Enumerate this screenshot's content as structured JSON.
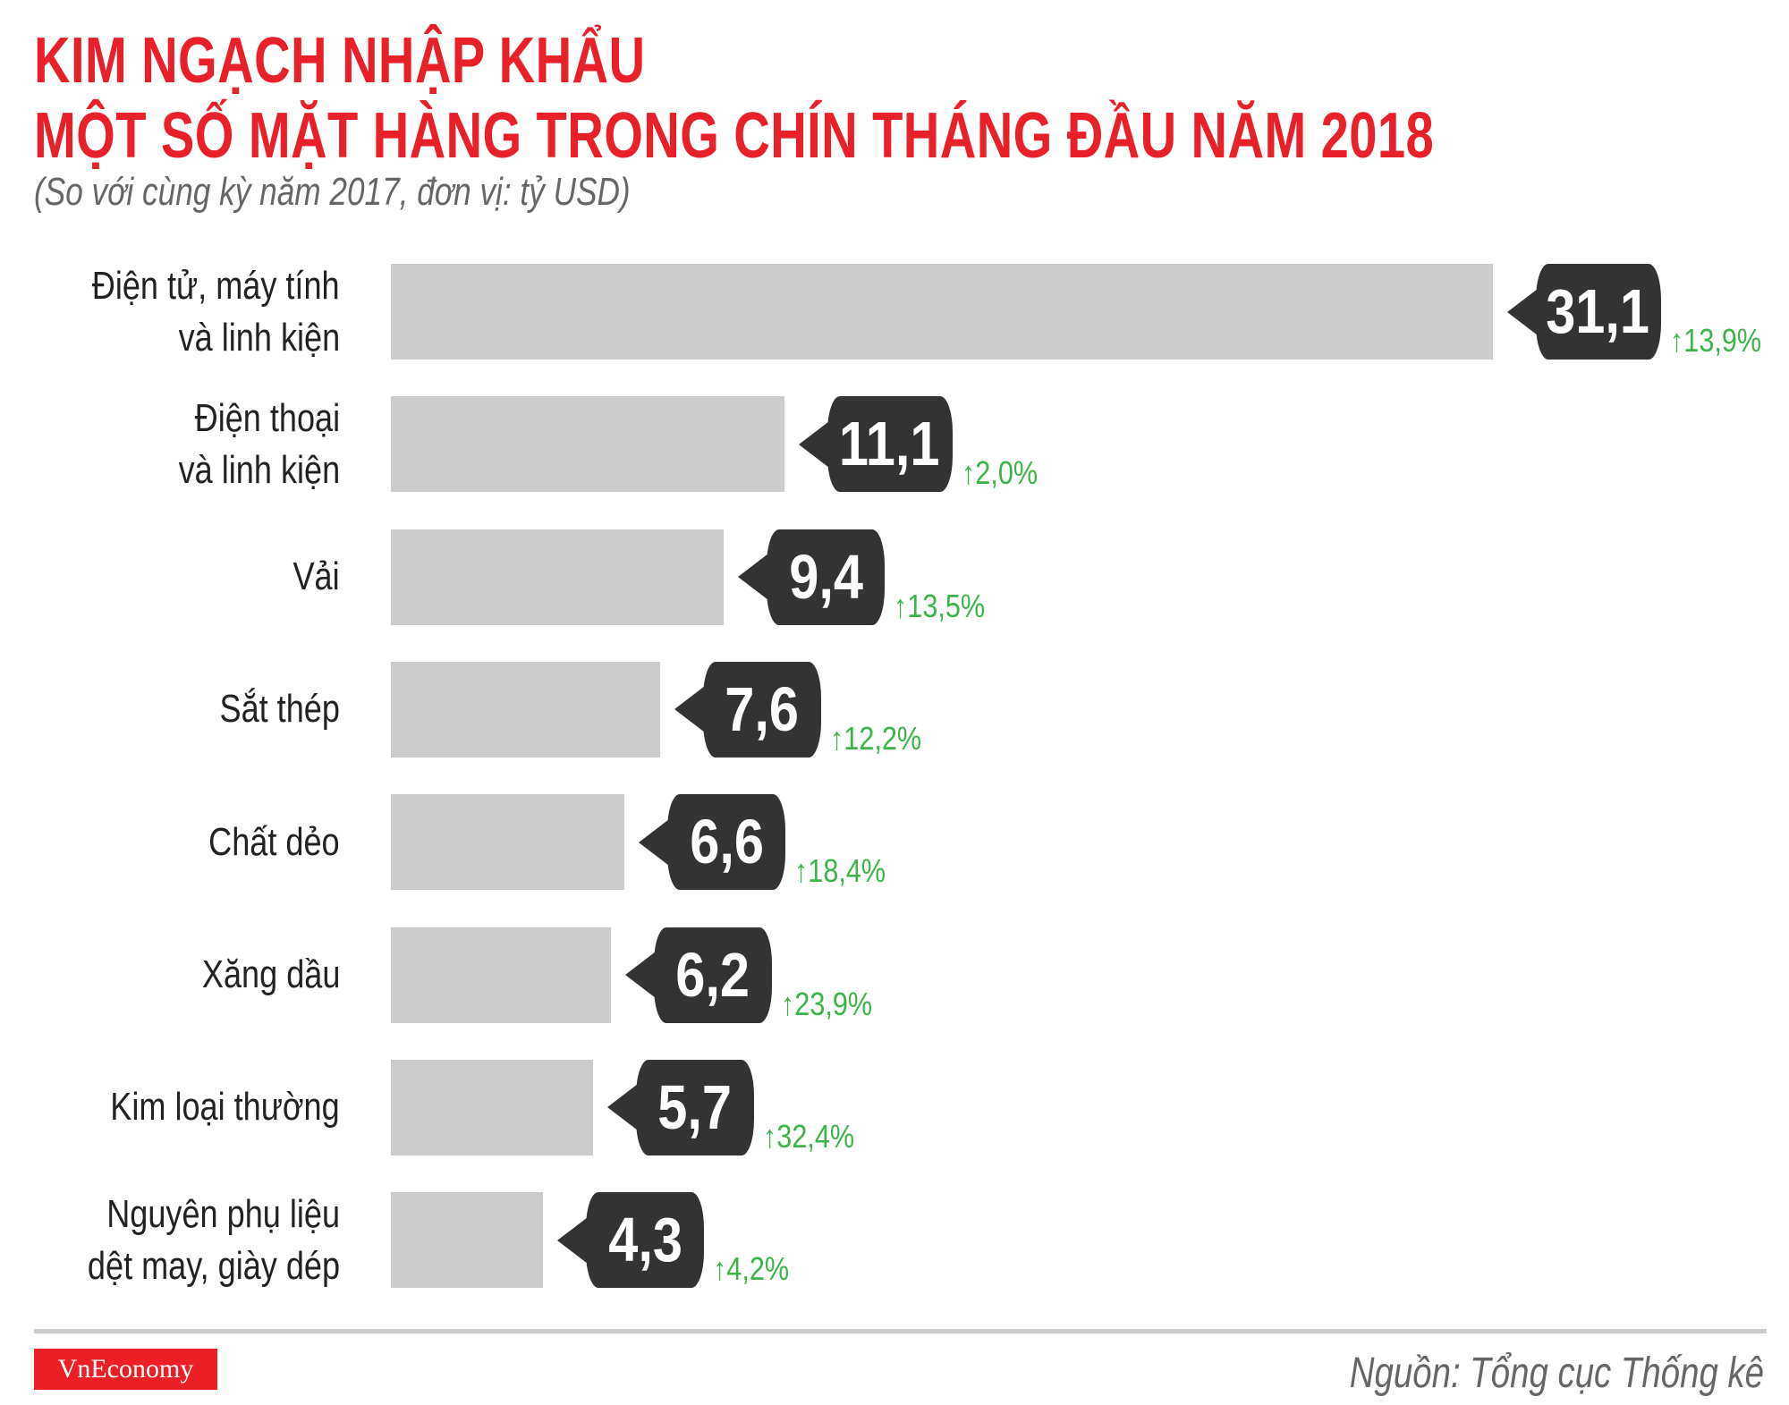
{
  "chart_data": {
    "type": "bar",
    "orientation": "horizontal",
    "title": "KIM NGẠCH NHẬP KHẨU",
    "title_line2": "MỘT SỐ MẶT HÀNG TRONG CHÍN THÁNG ĐẦU NĂM 2018",
    "subtitle": "(So với cùng kỳ năm 2017, đơn vị: tỷ USD)",
    "categories": [
      [
        "Điện tử, máy tính",
        "và linh kiện"
      ],
      [
        "Điện thoại",
        "và linh kiện"
      ],
      [
        "Vải"
      ],
      [
        "Sắt thép"
      ],
      [
        "Chất dẻo"
      ],
      [
        "Xăng dầu"
      ],
      [
        "Kim loại thường"
      ],
      [
        "Nguyên phụ liệu",
        "dệt may, giày dép"
      ]
    ],
    "values": [
      31.1,
      11.1,
      9.4,
      7.6,
      6.6,
      6.2,
      5.7,
      4.3
    ],
    "value_labels": [
      "31,1",
      "11,1",
      "9,4",
      "7,6",
      "6,6",
      "6,2",
      "5,7",
      "4,3"
    ],
    "change_labels": [
      "13,9%",
      "2,0%",
      "13,5%",
      "12,2%",
      "18,4%",
      "23,9%",
      "32,4%",
      "4,2%"
    ],
    "change_direction": "up",
    "grid": false,
    "colors": {
      "title": "#e8202a",
      "bar": "#cccbcc",
      "callout": "#333333",
      "change": "#3db449"
    }
  },
  "footer": {
    "logo": "VnEconomy",
    "source": "Nguồn: Tổng cục Thống kê"
  }
}
